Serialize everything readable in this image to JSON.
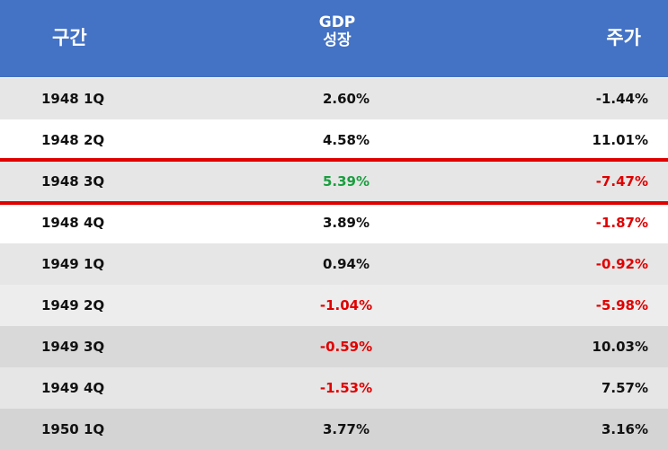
{
  "header": {
    "col1": "구간",
    "col2_line1": "GDP",
    "col2_line2": "성장",
    "col3": "주가"
  },
  "colors": {
    "header_bg": "#4472c4",
    "positive_gdp": "#1a9e3f",
    "negative": "#e00000",
    "default": "#111111",
    "highlight_line": "#e00000"
  },
  "rows": [
    {
      "period": "1948 1Q",
      "gdp": "2.60%",
      "stock": "-1.44%",
      "bg": "#e6e6e6",
      "gdp_color": "#111111",
      "stock_color": "#111111"
    },
    {
      "period": "1948 2Q",
      "gdp": "4.58%",
      "stock": "11.01%",
      "bg": "#ffffff",
      "gdp_color": "#111111",
      "stock_color": "#111111"
    },
    {
      "period": "1948 3Q",
      "gdp": "5.39%",
      "stock": "-7.47%",
      "bg": "#e6e6e6",
      "gdp_color": "#1a9e3f",
      "stock_color": "#e00000"
    },
    {
      "period": "1948 4Q",
      "gdp": "3.89%",
      "stock": "-1.87%",
      "bg": "#ffffff",
      "gdp_color": "#111111",
      "stock_color": "#e00000"
    },
    {
      "period": "1949 1Q",
      "gdp": "0.94%",
      "stock": "-0.92%",
      "bg": "#e6e6e6",
      "gdp_color": "#111111",
      "stock_color": "#e00000"
    },
    {
      "period": "1949 2Q",
      "gdp": "-1.04%",
      "stock": "-5.98%",
      "bg": "#ededed",
      "gdp_color": "#e00000",
      "stock_color": "#e00000"
    },
    {
      "period": "1949 3Q",
      "gdp": "-0.59%",
      "stock": "10.03%",
      "bg": "#d9d9d9",
      "gdp_color": "#e00000",
      "stock_color": "#111111"
    },
    {
      "period": "1949 4Q",
      "gdp": "-1.53%",
      "stock": "7.57%",
      "bg": "#e6e6e6",
      "gdp_color": "#e00000",
      "stock_color": "#111111"
    },
    {
      "period": "1950 1Q",
      "gdp": "3.77%",
      "stock": "3.16%",
      "bg": "#d4d4d4",
      "gdp_color": "#111111",
      "stock_color": "#111111"
    }
  ],
  "highlighted_row": 2
}
